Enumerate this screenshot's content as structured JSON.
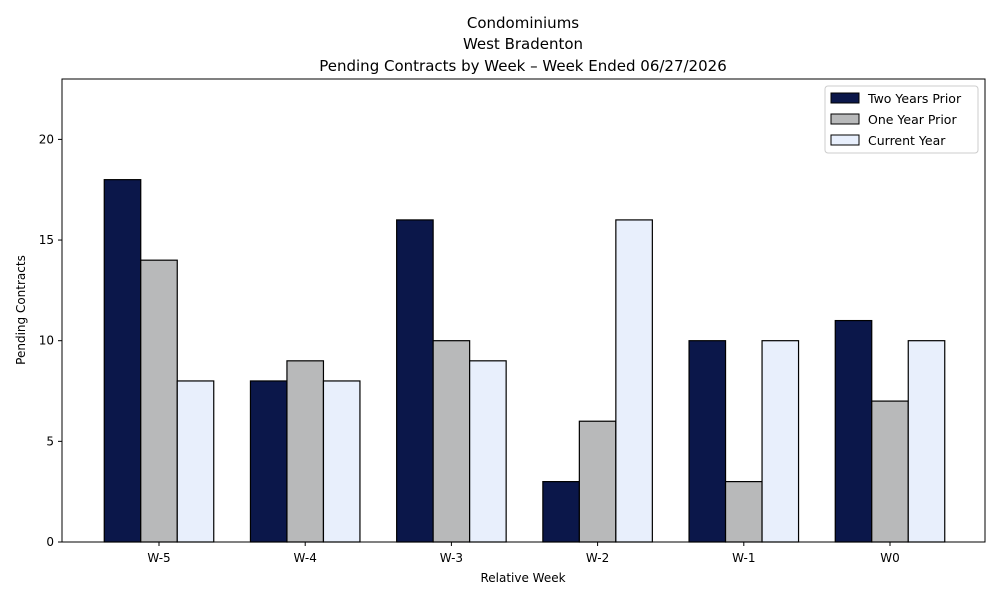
{
  "chart_data": {
    "type": "bar",
    "title_lines": [
      "Condominiums",
      "West Bradenton",
      "Pending Contracts by Week – Week Ended 06/27/2026"
    ],
    "xlabel": "Relative Week",
    "ylabel": "Pending Contracts",
    "categories": [
      "W-5",
      "W-4",
      "W-3",
      "W-2",
      "W-1",
      "W0"
    ],
    "series": [
      {
        "name": "Two Years Prior",
        "color": "#0b174a",
        "values": [
          18,
          8,
          16,
          3,
          10,
          11
        ]
      },
      {
        "name": "One Year Prior",
        "color": "#b8b9ba",
        "values": [
          14,
          9,
          10,
          6,
          3,
          7
        ]
      },
      {
        "name": "Current Year",
        "color": "#e8effc",
        "values": [
          8,
          8,
          9,
          16,
          10,
          10
        ]
      }
    ],
    "ylim": [
      0,
      23
    ],
    "yticks": [
      0,
      5,
      10,
      15,
      20
    ],
    "grid": false,
    "legend_position": "top-right"
  }
}
